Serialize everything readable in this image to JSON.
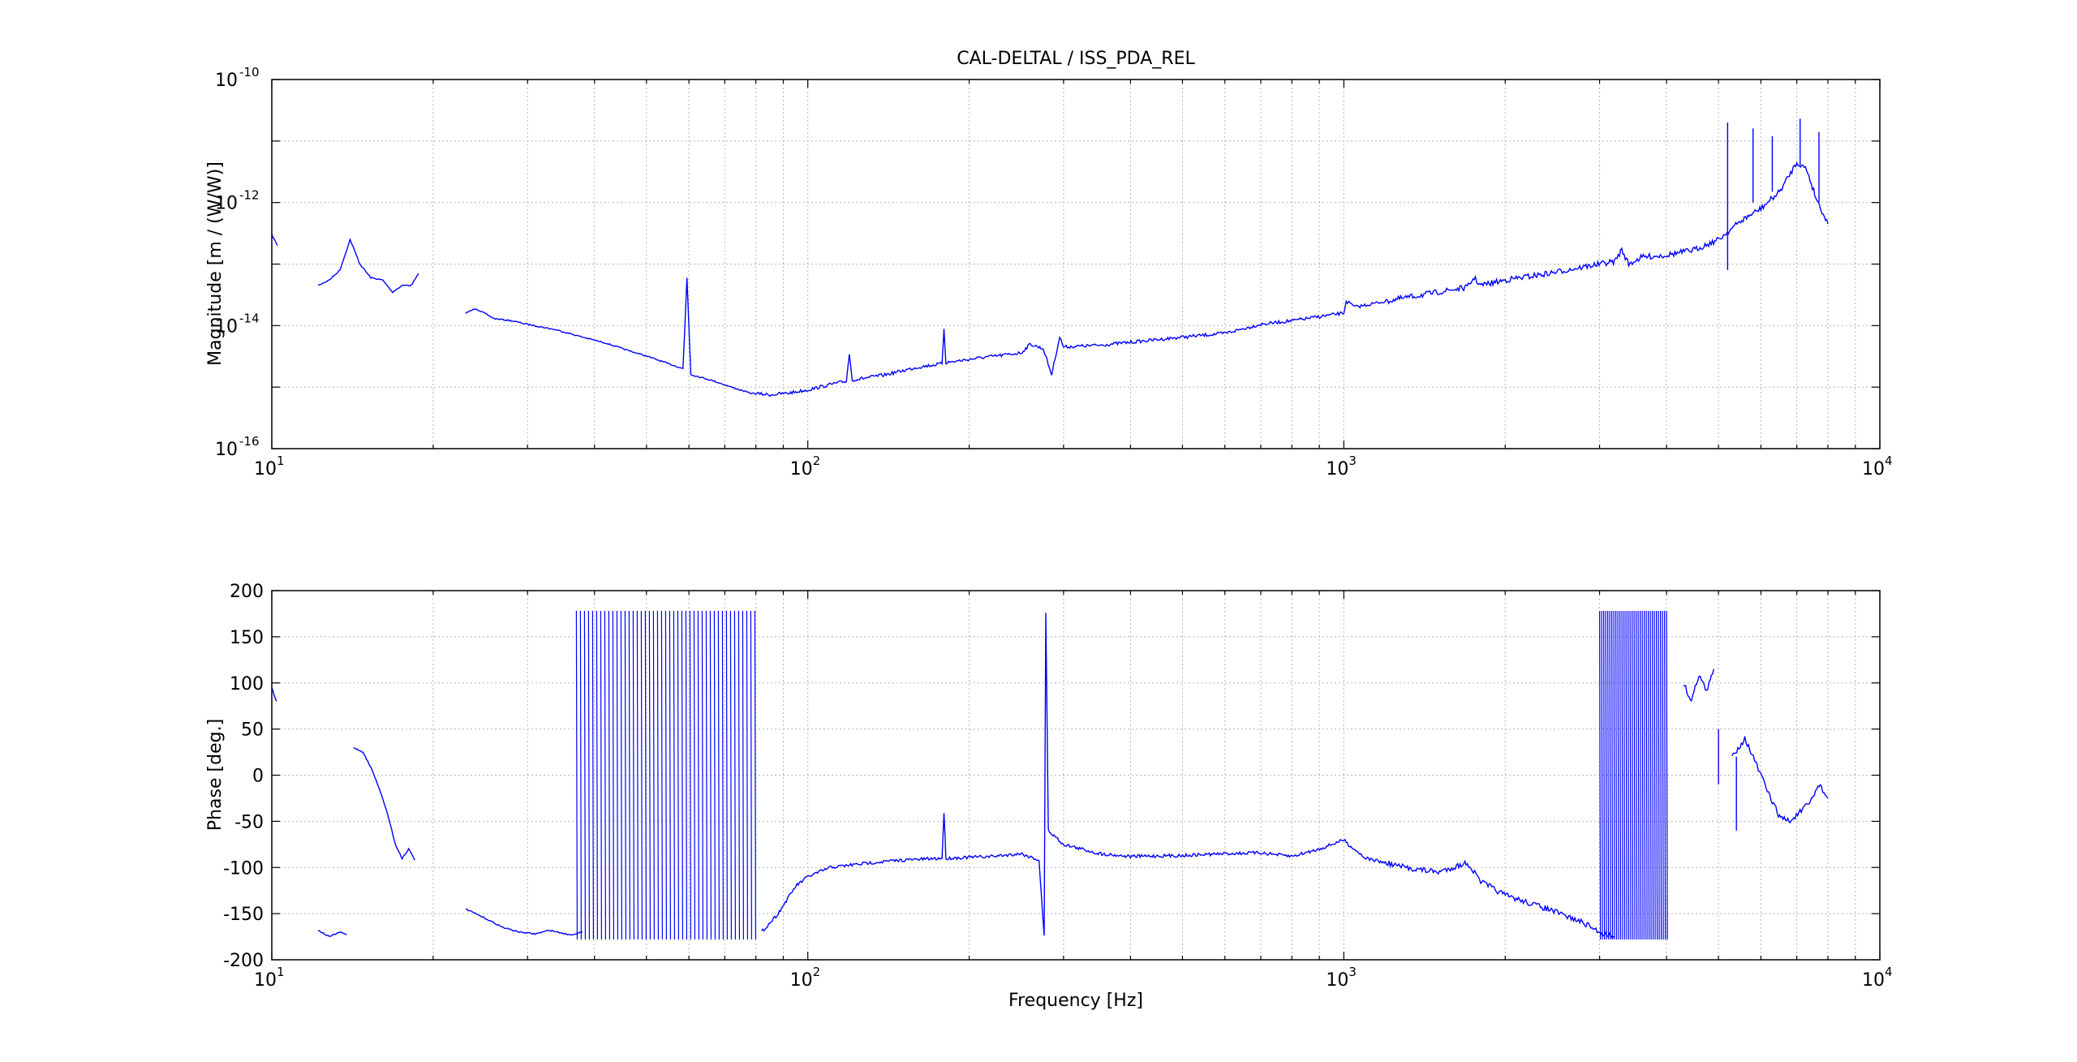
{
  "chart_data": [
    {
      "type": "line",
      "title": "CAL-DELTAL / ISS_PDA_REL",
      "xlabel": "",
      "ylabel": "Magnitude [m / (W/W)]",
      "xscale": "log",
      "yscale": "log",
      "xlim": [
        10,
        10000
      ],
      "ylim": [
        1e-16,
        1e-10
      ],
      "grid": true,
      "x_ticks": [
        {
          "base": "10",
          "exp": "1"
        },
        {
          "base": "10",
          "exp": "2"
        },
        {
          "base": "10",
          "exp": "3"
        },
        {
          "base": "10",
          "exp": "4"
        }
      ],
      "y_ticks": [
        {
          "base": "10",
          "exp": "-16"
        },
        {
          "base": "10",
          "exp": "-14"
        },
        {
          "base": "10",
          "exp": "-12"
        },
        {
          "base": "10",
          "exp": "-10"
        }
      ],
      "color": "#0000ff",
      "series": [
        {
          "segments": [
            [
              [
                10.0,
                3e-13
              ],
              [
                10.25,
                2e-13
              ]
            ],
            [
              [
                12.2,
                4.5e-14
              ],
              [
                12.8,
                5.5e-14
              ],
              [
                13.4,
                8e-14
              ],
              [
                14.0,
                2.5e-13
              ],
              [
                14.6,
                1e-13
              ],
              [
                15.3,
                6e-14
              ],
              [
                16.1,
                5.5e-14
              ],
              [
                16.8,
                3.5e-14
              ],
              [
                17.5,
                4.5e-14
              ],
              [
                18.2,
                4.5e-14
              ],
              [
                18.8,
                7e-14
              ]
            ],
            [
              [
                23,
                1.6e-14
              ],
              [
                24,
                1.9e-14
              ],
              [
                26,
                1.3e-14
              ],
              [
                28,
                1.2e-14
              ],
              [
                30,
                1.05e-14
              ],
              [
                34,
                8.5e-15
              ],
              [
                38,
                6.5e-15
              ],
              [
                42,
                5.2e-15
              ],
              [
                46,
                4e-15
              ],
              [
                50,
                3.2e-15
              ],
              [
                55,
                2.4e-15
              ],
              [
                58.5,
                2e-15
              ],
              [
                59.5,
                6e-14
              ],
              [
                60.5,
                1.6e-15
              ],
              [
                66,
                1.3e-15
              ],
              [
                72,
                1e-15
              ],
              [
                78,
                8e-16
              ],
              [
                85,
                7.5e-16
              ],
              [
                92,
                8e-16
              ],
              [
                100,
                9e-16
              ],
              [
                110,
                1.1e-15
              ],
              [
                118,
                1.25e-15
              ],
              [
                119.5,
                3.5e-15
              ],
              [
                121,
                1.3e-15
              ],
              [
                140,
                1.6e-15
              ],
              [
                160,
                2.1e-15
              ],
              [
                178,
                2.4e-15
              ],
              [
                179.5,
                9e-15
              ],
              [
                181,
                2.5e-15
              ],
              [
                210,
                3e-15
              ],
              [
                250,
                3.6e-15
              ],
              [
                260,
                5e-15
              ],
              [
                275,
                4.2e-15
              ],
              [
                285,
                1.6e-15
              ],
              [
                295,
                6.5e-15
              ],
              [
                300,
                4.5e-15
              ],
              [
                350,
                4.8e-15
              ],
              [
                420,
                5.6e-15
              ],
              [
                500,
                6.5e-15
              ],
              [
                600,
                7.5e-15
              ],
              [
                700,
                1.05e-14
              ],
              [
                800,
                1.2e-14
              ],
              [
                900,
                1.4e-14
              ],
              [
                1000,
                1.6e-14
              ],
              [
                1010,
                2.5e-14
              ],
              [
                1050,
                2e-14
              ],
              [
                1200,
                2.5e-14
              ],
              [
                1500,
                3.5e-14
              ],
              [
                1700,
                4.2e-14
              ],
              [
                1750,
                6e-14
              ],
              [
                1800,
                4.5e-14
              ],
              [
                2000,
                5.5e-14
              ],
              [
                2400,
                7e-14
              ],
              [
                2800,
                9e-14
              ],
              [
                3200,
                1.1e-13
              ],
              [
                3300,
                1.7e-13
              ],
              [
                3400,
                1e-13
              ],
              [
                3600,
                1.3e-13
              ],
              [
                4000,
                1.4e-13
              ],
              [
                4500,
                1.7e-13
              ],
              [
                5000,
                2.5e-13
              ],
              [
                5500,
                5e-13
              ],
              [
                6000,
                8e-13
              ],
              [
                6500,
                1.5e-12
              ],
              [
                7000,
                4.5e-12
              ],
              [
                7300,
                3.5e-12
              ],
              [
                7600,
                1.2e-12
              ],
              [
                8000,
                4.5e-13
              ]
            ]
          ],
          "spikes": [
            [
              5200,
              8e-14,
              2e-11
            ],
            [
              5800,
              1e-12,
              1.6e-11
            ],
            [
              6300,
              1.5e-12,
              1.2e-11
            ],
            [
              7100,
              4e-12,
              2.3e-11
            ],
            [
              7700,
              1e-12,
              1.4e-11
            ]
          ]
        }
      ]
    },
    {
      "type": "line",
      "title": "",
      "xlabel": "Frequency [Hz]",
      "ylabel": "Phase [deg.]",
      "xscale": "log",
      "yscale": "linear",
      "xlim": [
        10,
        10000
      ],
      "ylim": [
        -200,
        200
      ],
      "grid": true,
      "x_ticks": [
        {
          "base": "10",
          "exp": "1"
        },
        {
          "base": "10",
          "exp": "2"
        },
        {
          "base": "10",
          "exp": "3"
        },
        {
          "base": "10",
          "exp": "4"
        }
      ],
      "y_ticks": [
        "200",
        "150",
        "100",
        "50",
        "0",
        "-50",
        "-100",
        "-150",
        "-200"
      ],
      "color": "#0000ff",
      "series": [
        {
          "segments": [
            [
              [
                10.0,
                95
              ],
              [
                10.2,
                80
              ]
            ],
            [
              [
                12.2,
                -168
              ],
              [
                12.8,
                -175
              ],
              [
                13.4,
                -170
              ],
              [
                13.8,
                -173
              ]
            ],
            [
              [
                14.2,
                30
              ],
              [
                14.8,
                25
              ],
              [
                15.4,
                5
              ],
              [
                16.0,
                -20
              ],
              [
                16.5,
                -45
              ],
              [
                17.0,
                -75
              ],
              [
                17.5,
                -90
              ],
              [
                18.0,
                -80
              ],
              [
                18.5,
                -92
              ]
            ],
            [
              [
                23,
                -145
              ],
              [
                25,
                -155
              ],
              [
                27,
                -165
              ],
              [
                29,
                -170
              ],
              [
                31,
                -172
              ],
              [
                33,
                -168
              ],
              [
                36,
                -173
              ],
              [
                38,
                -170
              ]
            ],
            [
              [
                82,
                -170
              ],
              [
                88,
                -150
              ],
              [
                95,
                -120
              ],
              [
                100,
                -110
              ],
              [
                110,
                -100
              ],
              [
                130,
                -95
              ],
              [
                150,
                -92
              ],
              [
                178,
                -90
              ],
              [
                179.5,
                -40
              ],
              [
                181,
                -90
              ],
              [
                220,
                -88
              ],
              [
                250,
                -85
              ],
              [
                270,
                -92
              ],
              [
                276,
                -175
              ],
              [
                278,
                175
              ],
              [
                281,
                -60
              ],
              [
                300,
                -75
              ],
              [
                350,
                -85
              ],
              [
                400,
                -88
              ],
              [
                500,
                -87
              ],
              [
                600,
                -85
              ],
              [
                700,
                -84
              ],
              [
                800,
                -88
              ],
              [
                900,
                -80
              ],
              [
                1000,
                -70
              ],
              [
                1020,
                -75
              ],
              [
                1100,
                -90
              ],
              [
                1300,
                -100
              ],
              [
                1500,
                -105
              ],
              [
                1700,
                -95
              ],
              [
                1800,
                -115
              ],
              [
                2000,
                -130
              ],
              [
                2400,
                -145
              ],
              [
                2800,
                -160
              ],
              [
                3000,
                -170
              ],
              [
                3200,
                -175
              ]
            ],
            [
              [
                4300,
                100
              ],
              [
                4450,
                80
              ],
              [
                4600,
                110
              ],
              [
                4750,
                90
              ],
              [
                4900,
                115
              ]
            ],
            [
              [
                5300,
                20
              ],
              [
                5600,
                40
              ],
              [
                5900,
                10
              ],
              [
                6200,
                -20
              ],
              [
                6500,
                -45
              ],
              [
                6800,
                -50
              ],
              [
                7100,
                -40
              ],
              [
                7400,
                -30
              ],
              [
                7700,
                -10
              ],
              [
                8000,
                -25
              ]
            ]
          ],
          "wrap_bands": [
            [
              37,
              80
            ],
            [
              3000,
              4000
            ]
          ],
          "spikes": [
            [
              5000,
              -10,
              50
            ],
            [
              5400,
              -60,
              20
            ]
          ]
        }
      ]
    }
  ]
}
